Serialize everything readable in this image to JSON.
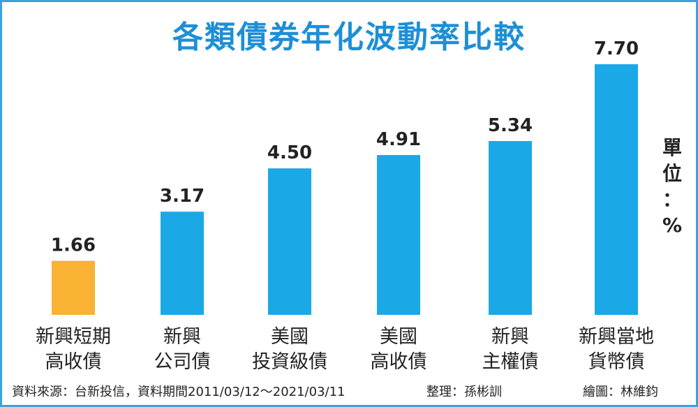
{
  "chart_data": {
    "type": "bar",
    "title": "各類債券年化波動率比較",
    "unit_chars": [
      "單",
      "位",
      "：",
      "%"
    ],
    "categories": [
      [
        "新興短期",
        "高收債"
      ],
      [
        "新興",
        "公司債"
      ],
      [
        "美國",
        "投資級債"
      ],
      [
        "美國",
        "高收債"
      ],
      [
        "新興",
        "主權債"
      ],
      [
        "新興當地",
        "貨幣債"
      ]
    ],
    "values": [
      1.66,
      3.17,
      4.5,
      4.91,
      5.34,
      7.7
    ],
    "value_labels": [
      "1.66",
      "3.17",
      "4.50",
      "4.91",
      "5.34",
      "7.70"
    ],
    "colors": [
      "#f9b233",
      "#1ba8e6",
      "#1ba8e6",
      "#1ba8e6",
      "#1ba8e6",
      "#1ba8e6"
    ],
    "ylim": [
      0,
      7.7
    ],
    "grid": false,
    "legend": "none"
  },
  "footer": {
    "source": "資料來源：台新投信，資料期間2011/03/12～2021/03/11",
    "editor": "整理：孫彬訓",
    "illustrator": "繪圖：林維鈞"
  }
}
